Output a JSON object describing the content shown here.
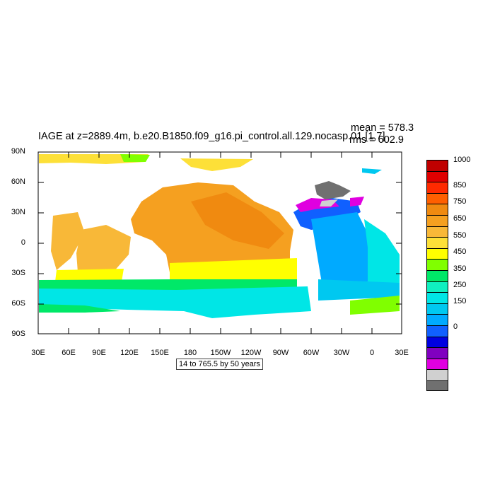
{
  "title": "IAGE at z=2889.4m, b.e20.B1850.f09_g16.pi_control.all.129.nocasp.01 [1,7]",
  "stats": {
    "mean": "mean = 578.3",
    "rms": "rms = 602.9"
  },
  "footnote": "14 to 765.5 by 50 years",
  "axes": {
    "lat_labels": [
      "90N",
      "60N",
      "30N",
      "0",
      "30S",
      "60S",
      "90S"
    ],
    "lon_labels": [
      "30E",
      "60E",
      "90E",
      "120E",
      "150E",
      "180",
      "150W",
      "120W",
      "90W",
      "60W",
      "30W",
      "0",
      "30E"
    ]
  },
  "colorbar": {
    "colors": [
      "#c00000",
      "#e00000",
      "#ff2a00",
      "#ff5f00",
      "#f08a10",
      "#f5a020",
      "#f8b838",
      "#fde038",
      "#ffff00",
      "#80ff00",
      "#00e868",
      "#10f0c0",
      "#00e6e6",
      "#00c8f0",
      "#00aaff",
      "#1060ff",
      "#0000e0",
      "#8000c0",
      "#e000e0",
      "#d0d0d0",
      "#707070"
    ],
    "labels": [
      "1000",
      "850",
      "750",
      "650",
      "550",
      "450",
      "350",
      "250",
      "150",
      "0"
    ]
  },
  "map_colors": {
    "ocean_atlantic_deep": "#00aaff",
    "pacific_north": "#f5a020",
    "pacific_core": "#f08a10",
    "indian": "#f8b838",
    "yellow_band": "#ffff00",
    "green_band": "#80ff00",
    "southern": "#00e6e6",
    "nordic_grey": "#707070"
  }
}
